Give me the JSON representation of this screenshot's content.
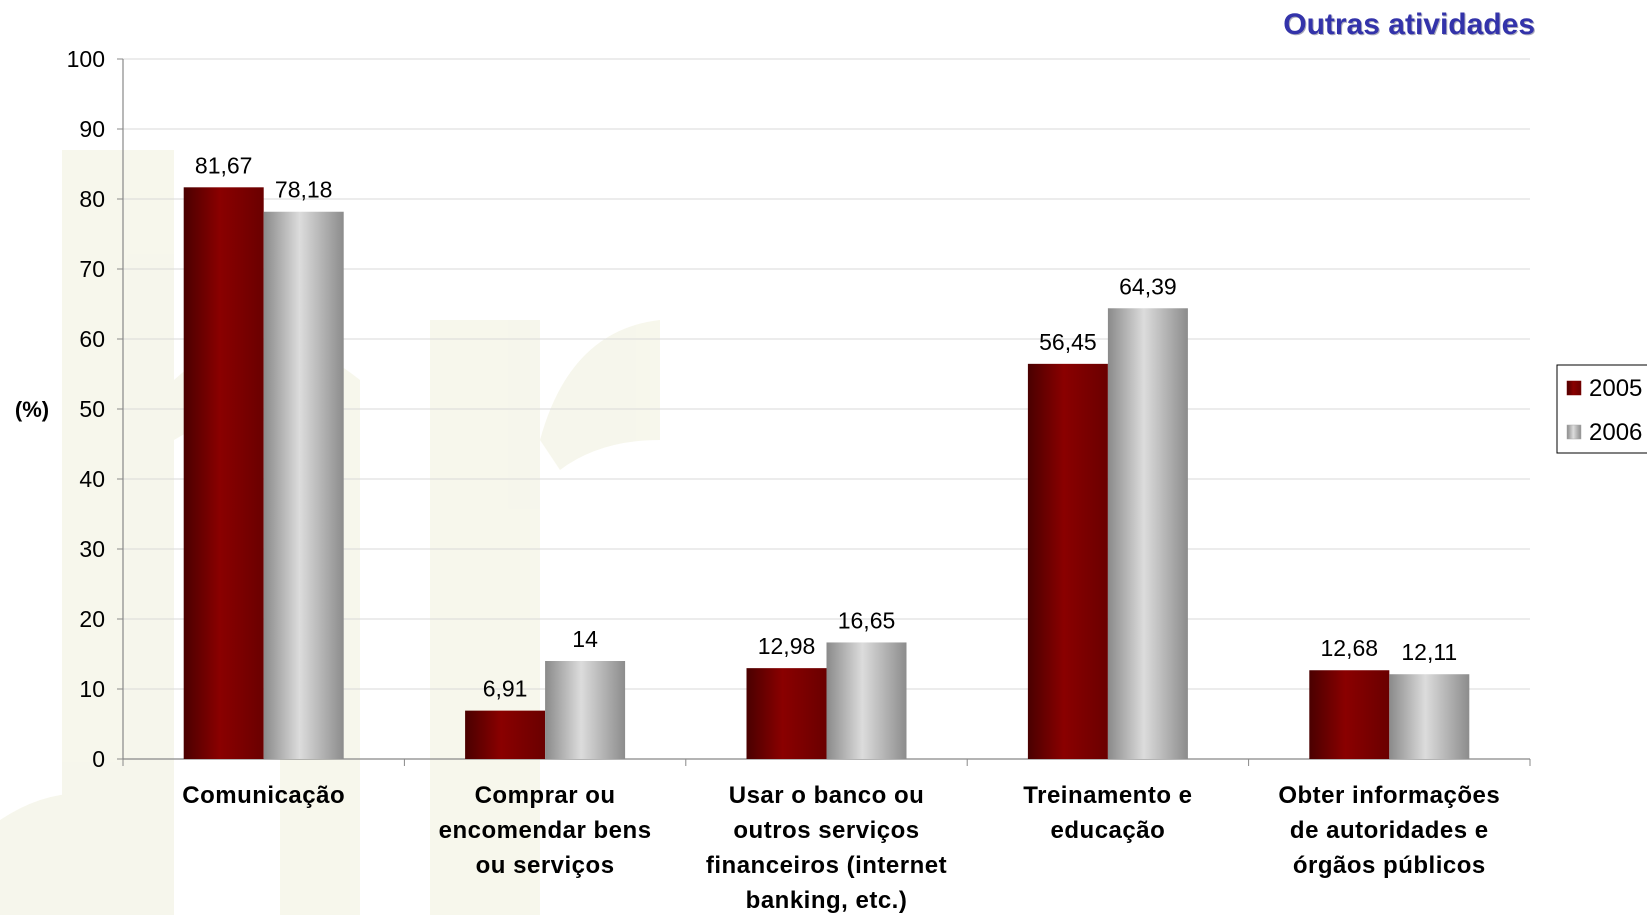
{
  "chart_data": {
    "type": "bar",
    "title": "Outras atividades",
    "ylabel": "(%)",
    "xlabel": "",
    "ylim": [
      0,
      100
    ],
    "yticks": [
      0,
      10,
      20,
      30,
      40,
      50,
      60,
      70,
      80,
      90,
      100
    ],
    "grid": true,
    "legend_position": "right",
    "categories": [
      [
        "Comunicação"
      ],
      [
        "Comprar ou",
        "encomendar bens",
        "ou serviços"
      ],
      [
        "Usar o banco ou",
        "outros serviços",
        "financeiros (internet",
        "banking, etc.)"
      ],
      [
        "Treinamento e",
        "educação"
      ],
      [
        "Obter informações",
        "de autoridades e",
        "órgãos públicos"
      ]
    ],
    "series": [
      {
        "name": "2005",
        "color": "#7a0000",
        "values": [
          81.67,
          6.91,
          12.98,
          56.45,
          12.68
        ],
        "labels": [
          "81,67",
          "6,91",
          "12,98",
          "56,45",
          "12,68"
        ]
      },
      {
        "name": "2006",
        "color": "#a8a8a8",
        "values": [
          78.18,
          14,
          16.65,
          64.39,
          12.11
        ],
        "labels": [
          "78,18",
          "14",
          "16,65",
          "64,39",
          "12,11"
        ]
      }
    ]
  }
}
